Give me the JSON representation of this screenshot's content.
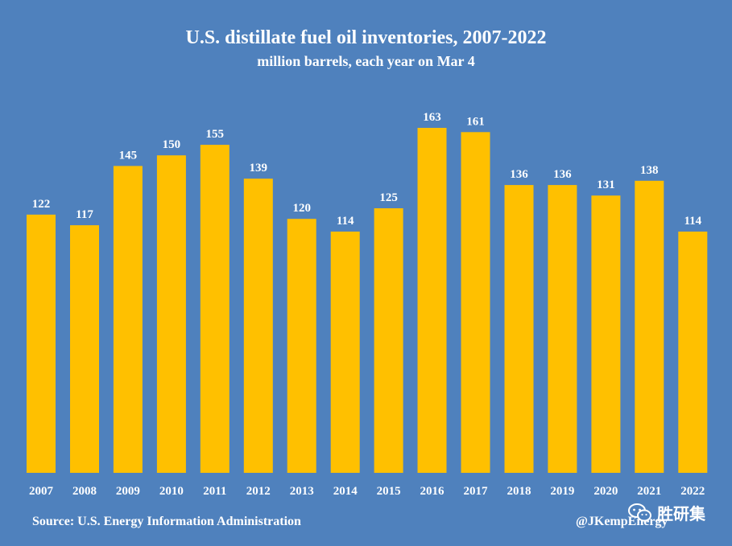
{
  "header": {
    "title": "U.S. distillate fuel oil inventories, 2007-2022",
    "subtitle": "million barrels, each year on Mar 4"
  },
  "footer": {
    "source": "Source: U.S. Energy Information Administration",
    "handle": "@JKempEnergy",
    "watermark_text": "胜研集",
    "watermark_icon": "wechat-icon"
  },
  "colors": {
    "background": "#4f81bd",
    "bar": "#ffc000",
    "text": "#ffffff"
  },
  "chart_data": {
    "type": "bar",
    "title": "U.S. distillate fuel oil inventories, 2007-2022",
    "subtitle": "million barrels, each year on Mar 4",
    "categories": [
      "2007",
      "2008",
      "2009",
      "2010",
      "2011",
      "2012",
      "2013",
      "2014",
      "2015",
      "2016",
      "2017",
      "2018",
      "2019",
      "2020",
      "2021",
      "2022"
    ],
    "values": [
      122,
      117,
      145,
      150,
      155,
      139,
      120,
      114,
      125,
      163,
      161,
      136,
      136,
      131,
      138,
      114
    ],
    "ylim": [
      0,
      163
    ],
    "grid": false,
    "legend": "none",
    "data_labels": true
  }
}
